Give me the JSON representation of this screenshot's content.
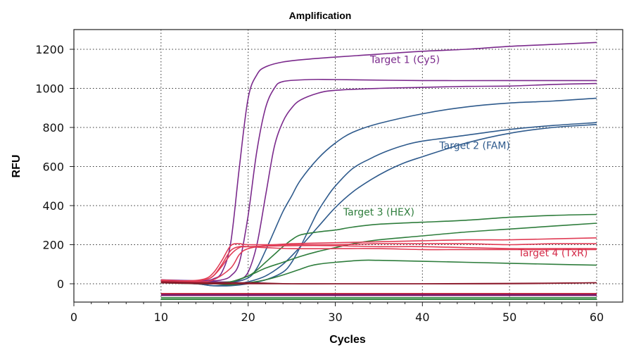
{
  "chart_data": {
    "type": "line",
    "title": "Amplification",
    "xlabel": "Cycles",
    "ylabel": "RFU",
    "xlim": [
      0,
      60
    ],
    "ylim": [
      -100,
      1300
    ],
    "xticks": [
      0,
      10,
      20,
      30,
      40,
      50,
      60
    ],
    "yticks": [
      0,
      200,
      400,
      600,
      800,
      1000,
      1200
    ],
    "grid": true,
    "series_groups": [
      {
        "name": "Target 1 (Cy5)",
        "color": "#7b2a8c",
        "curves": [
          [
            [
              10,
              20
            ],
            [
              12,
              18
            ],
            [
              14,
              15
            ],
            [
              15,
              15
            ],
            [
              16,
              25
            ],
            [
              17,
              60
            ],
            [
              18,
              210
            ],
            [
              19,
              600
            ],
            [
              20,
              950
            ],
            [
              21,
              1070
            ],
            [
              22,
              1110
            ],
            [
              24,
              1135
            ],
            [
              27,
              1150
            ],
            [
              30,
              1160
            ],
            [
              35,
              1175
            ],
            [
              40,
              1190
            ],
            [
              45,
              1200
            ],
            [
              50,
              1215
            ],
            [
              55,
              1225
            ],
            [
              60,
              1235
            ]
          ],
          [
            [
              10,
              18
            ],
            [
              14,
              15
            ],
            [
              16,
              15
            ],
            [
              17,
              20
            ],
            [
              18,
              40
            ],
            [
              19,
              110
            ],
            [
              20,
              350
            ],
            [
              21,
              680
            ],
            [
              22,
              900
            ],
            [
              23,
              1000
            ],
            [
              24,
              1035
            ],
            [
              27,
              1045
            ],
            [
              30,
              1045
            ],
            [
              40,
              1040
            ],
            [
              50,
              1040
            ],
            [
              55,
              1040
            ],
            [
              60,
              1040
            ]
          ],
          [
            [
              10,
              15
            ],
            [
              14,
              12
            ],
            [
              16,
              10
            ],
            [
              18,
              10
            ],
            [
              19,
              20
            ],
            [
              20,
              60
            ],
            [
              21,
              200
            ],
            [
              22,
              450
            ],
            [
              23,
              700
            ],
            [
              24,
              830
            ],
            [
              25,
              900
            ],
            [
              26,
              940
            ],
            [
              28,
              975
            ],
            [
              30,
              990
            ],
            [
              35,
              1000
            ],
            [
              40,
              1005
            ],
            [
              45,
              1010
            ],
            [
              50,
              1012
            ],
            [
              55,
              1020
            ],
            [
              60,
              1025
            ]
          ]
        ]
      },
      {
        "name": "Target 2 (FAM)",
        "color": "#2e5a8c",
        "curves": [
          [
            [
              10,
              10
            ],
            [
              14,
              5
            ],
            [
              16,
              0
            ],
            [
              18,
              5
            ],
            [
              20,
              30
            ],
            [
              21,
              80
            ],
            [
              22,
              170
            ],
            [
              23,
              270
            ],
            [
              24,
              370
            ],
            [
              25,
              450
            ],
            [
              26,
              530
            ],
            [
              28,
              640
            ],
            [
              30,
              720
            ],
            [
              32,
              775
            ],
            [
              35,
              820
            ],
            [
              40,
              870
            ],
            [
              45,
              905
            ],
            [
              50,
              925
            ],
            [
              55,
              935
            ],
            [
              60,
              950
            ]
          ],
          [
            [
              10,
              5
            ],
            [
              14,
              0
            ],
            [
              16,
              -10
            ],
            [
              18,
              -5
            ],
            [
              20,
              10
            ],
            [
              22,
              40
            ],
            [
              24,
              100
            ],
            [
              26,
              190
            ],
            [
              28,
              290
            ],
            [
              30,
              390
            ],
            [
              32,
              470
            ],
            [
              34,
              530
            ],
            [
              36,
              580
            ],
            [
              38,
              620
            ],
            [
              40,
              650
            ],
            [
              45,
              720
            ],
            [
              50,
              770
            ],
            [
              55,
              800
            ],
            [
              60,
              815
            ]
          ],
          [
            [
              10,
              10
            ],
            [
              14,
              0
            ],
            [
              16,
              -10
            ],
            [
              18,
              -10
            ],
            [
              20,
              0
            ],
            [
              22,
              20
            ],
            [
              24,
              60
            ],
            [
              25,
              110
            ],
            [
              26,
              190
            ],
            [
              27,
              280
            ],
            [
              28,
              370
            ],
            [
              29,
              440
            ],
            [
              30,
              500
            ],
            [
              32,
              590
            ],
            [
              34,
              640
            ],
            [
              36,
              680
            ],
            [
              38,
              710
            ],
            [
              40,
              730
            ],
            [
              45,
              760
            ],
            [
              50,
              790
            ],
            [
              55,
              810
            ],
            [
              60,
              825
            ]
          ]
        ]
      },
      {
        "name": "Target 3 (HEX)",
        "color": "#2e7d3c",
        "curves": [
          [
            [
              10,
              10
            ],
            [
              14,
              5
            ],
            [
              16,
              5
            ],
            [
              18,
              10
            ],
            [
              20,
              40
            ],
            [
              21,
              70
            ],
            [
              22,
              110
            ],
            [
              23,
              150
            ],
            [
              24,
              190
            ],
            [
              25,
              225
            ],
            [
              26,
              250
            ],
            [
              28,
              265
            ],
            [
              30,
              275
            ],
            [
              32,
              290
            ],
            [
              35,
              305
            ],
            [
              40,
              315
            ],
            [
              45,
              325
            ],
            [
              50,
              340
            ],
            [
              55,
              350
            ],
            [
              60,
              355
            ]
          ],
          [
            [
              10,
              5
            ],
            [
              14,
              0
            ],
            [
              16,
              0
            ],
            [
              18,
              10
            ],
            [
              20,
              40
            ],
            [
              22,
              80
            ],
            [
              24,
              110
            ],
            [
              26,
              140
            ],
            [
              28,
              165
            ],
            [
              30,
              185
            ],
            [
              32,
              205
            ],
            [
              35,
              225
            ],
            [
              40,
              245
            ],
            [
              45,
              265
            ],
            [
              50,
              280
            ],
            [
              55,
              295
            ],
            [
              60,
              310
            ]
          ],
          [
            [
              10,
              5
            ],
            [
              14,
              5
            ],
            [
              16,
              0
            ],
            [
              18,
              -5
            ],
            [
              20,
              5
            ],
            [
              22,
              20
            ],
            [
              24,
              45
            ],
            [
              26,
              75
            ],
            [
              27,
              90
            ],
            [
              28,
              100
            ],
            [
              30,
              110
            ],
            [
              33,
              120
            ],
            [
              35,
              120
            ],
            [
              40,
              115
            ],
            [
              45,
              110
            ],
            [
              50,
              105
            ],
            [
              55,
              100
            ],
            [
              60,
              95
            ]
          ]
        ]
      },
      {
        "name": "Target 4 (TxR)",
        "color": "#e03c55",
        "curves": [
          [
            [
              10,
              20
            ],
            [
              13,
              15
            ],
            [
              15,
              25
            ],
            [
              16,
              55
            ],
            [
              17,
              120
            ],
            [
              18,
              195
            ],
            [
              19,
              205
            ],
            [
              20,
              200
            ],
            [
              25,
              200
            ],
            [
              30,
              200
            ],
            [
              35,
              205
            ],
            [
              40,
              205
            ],
            [
              45,
              205
            ],
            [
              50,
              200
            ],
            [
              55,
              205
            ],
            [
              60,
              205
            ]
          ],
          [
            [
              10,
              15
            ],
            [
              13,
              15
            ],
            [
              15,
              20
            ],
            [
              16,
              40
            ],
            [
              17,
              90
            ],
            [
              18,
              150
            ],
            [
              19,
              185
            ],
            [
              20,
              190
            ],
            [
              25,
              195
            ],
            [
              30,
              195
            ],
            [
              35,
              190
            ],
            [
              40,
              190
            ],
            [
              45,
              185
            ],
            [
              50,
              180
            ],
            [
              55,
              180
            ],
            [
              60,
              180
            ]
          ],
          [
            [
              10,
              10
            ],
            [
              13,
              10
            ],
            [
              15,
              20
            ],
            [
              16,
              40
            ],
            [
              17,
              100
            ],
            [
              18,
              170
            ],
            [
              19,
              190
            ],
            [
              20,
              190
            ],
            [
              22,
              185
            ],
            [
              25,
              180
            ],
            [
              30,
              180
            ],
            [
              35,
              180
            ],
            [
              40,
              175
            ],
            [
              45,
              175
            ],
            [
              50,
              175
            ],
            [
              55,
              175
            ],
            [
              60,
              175
            ]
          ],
          [
            [
              10,
              15
            ],
            [
              14,
              10
            ],
            [
              16,
              20
            ],
            [
              18,
              80
            ],
            [
              19,
              150
            ],
            [
              20,
              180
            ],
            [
              22,
              195
            ],
            [
              25,
              205
            ],
            [
              30,
              210
            ],
            [
              35,
              215
            ],
            [
              40,
              220
            ],
            [
              45,
              225
            ],
            [
              50,
              225
            ],
            [
              55,
              230
            ],
            [
              60,
              235
            ]
          ]
        ]
      },
      {
        "name": "",
        "color": "#8b1a2b",
        "curves": [
          [
            [
              10,
              10
            ],
            [
              15,
              5
            ],
            [
              20,
              5
            ],
            [
              25,
              0
            ],
            [
              30,
              0
            ],
            [
              40,
              0
            ],
            [
              50,
              0
            ],
            [
              60,
              5
            ]
          ],
          [
            [
              10,
              5
            ],
            [
              15,
              0
            ],
            [
              20,
              0
            ],
            [
              30,
              0
            ],
            [
              40,
              0
            ],
            [
              50,
              2
            ],
            [
              60,
              5
            ]
          ]
        ]
      },
      {
        "name": "",
        "color": "#1e7a2e",
        "curves": [
          [
            [
              10,
              -80
            ],
            [
              60,
              -80
            ]
          ],
          [
            [
              10,
              -72
            ],
            [
              60,
              -72
            ]
          ]
        ]
      },
      {
        "name": "",
        "color": "#7a1f6e",
        "curves": [
          [
            [
              10,
              -60
            ],
            [
              60,
              -60
            ]
          ],
          [
            [
              10,
              -55
            ],
            [
              60,
              -55
            ]
          ]
        ]
      },
      {
        "name": "",
        "color": "#c01830",
        "curves": [
          [
            [
              10,
              -50
            ],
            [
              60,
              -50
            ]
          ]
        ]
      }
    ],
    "annotations": [
      {
        "text": "Target 1 (Cy5)",
        "x": 38,
        "y": 1130,
        "color": "#7b2a8c"
      },
      {
        "text": "Target 2 (FAM)",
        "x": 46,
        "y": 690,
        "color": "#2e5a8c"
      },
      {
        "text": "Target 3 (HEX)",
        "x": 35,
        "y": 350,
        "color": "#2e7d3c"
      },
      {
        "text": "Target 4 (TxR)",
        "x": 55,
        "y": 140,
        "color": "#d42a48"
      }
    ]
  }
}
